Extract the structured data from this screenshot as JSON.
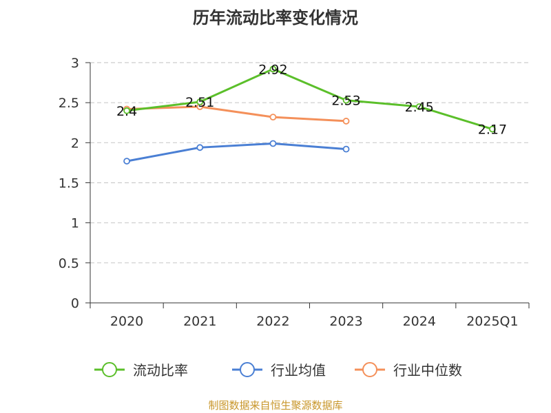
{
  "chart_data": {
    "type": "line",
    "title": "历年流动比率变化情况",
    "categories": [
      "2020",
      "2021",
      "2022",
      "2023",
      "2024",
      "2025Q1"
    ],
    "ylim": [
      0,
      3
    ],
    "yticks": [
      "0",
      "0.5",
      "1",
      "1.5",
      "2",
      "2.5",
      "3"
    ],
    "grid": true,
    "legend_position": "bottom",
    "series": [
      {
        "name": "流动比率",
        "color": "#5bbf2a",
        "values": [
          2.4,
          2.51,
          2.92,
          2.53,
          2.45,
          2.17
        ],
        "labels": [
          "2.4",
          "2.51",
          "2.92",
          "2.53",
          "2.45",
          "2.17"
        ],
        "show_labels": true
      },
      {
        "name": "行业均值",
        "color": "#4a7fd4",
        "values": [
          1.77,
          1.94,
          1.99,
          1.92,
          null,
          null
        ],
        "show_labels": false
      },
      {
        "name": "行业中位数",
        "color": "#f4905a",
        "values": [
          2.42,
          2.45,
          2.32,
          2.27,
          null,
          null
        ],
        "show_labels": false
      }
    ]
  },
  "source_note": "制图数据来自恒生聚源数据库"
}
